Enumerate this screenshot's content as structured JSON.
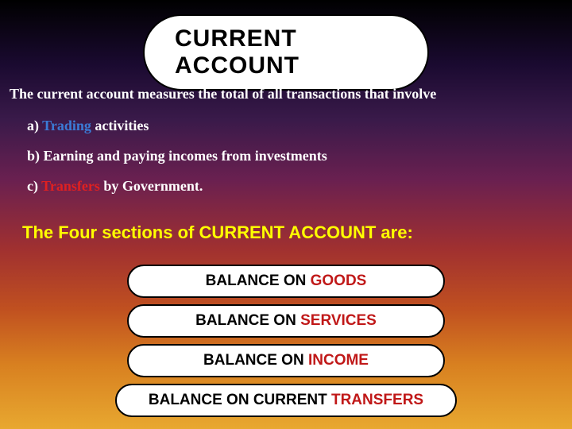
{
  "colors": {
    "title_text": "#000000",
    "intro_text": "#ffffff",
    "list_prefix": "#ffffff",
    "highlight_a": "#3b7bd6",
    "list_b_text": "#ffffff",
    "highlight_c": "#e02020",
    "subhead_text": "#ffff00",
    "pill_text": "#000000",
    "pill_highlight": "#c01818"
  },
  "fonts": {
    "title_size": 30,
    "intro_size": 18,
    "list_size": 18,
    "subhead_size": 22,
    "pill_size": 19
  },
  "title": "CURRENT ACCOUNT",
  "intro": "The current account measures the total of all transactions that involve",
  "items": {
    "a": {
      "prefix": "a) ",
      "hl": "Trading",
      "rest": " activities"
    },
    "b": {
      "prefix": "b) ",
      "text": "Earning and paying incomes from investments"
    },
    "c": {
      "prefix": "c) ",
      "hl": "Transfers",
      "rest": " by Government."
    }
  },
  "subhead": "The Four sections of CURRENT ACCOUNT are:",
  "pills": {
    "p1": {
      "pre": "BALANCE ON ",
      "hl": "GOODS"
    },
    "p2": {
      "pre": "BALANCE ON ",
      "hl": "SERVICES"
    },
    "p3": {
      "pre": "BALANCE ON ",
      "hl": "INCOME"
    },
    "p4": {
      "pre": "BALANCE ON CURRENT ",
      "hl": "TRANSFERS"
    }
  }
}
